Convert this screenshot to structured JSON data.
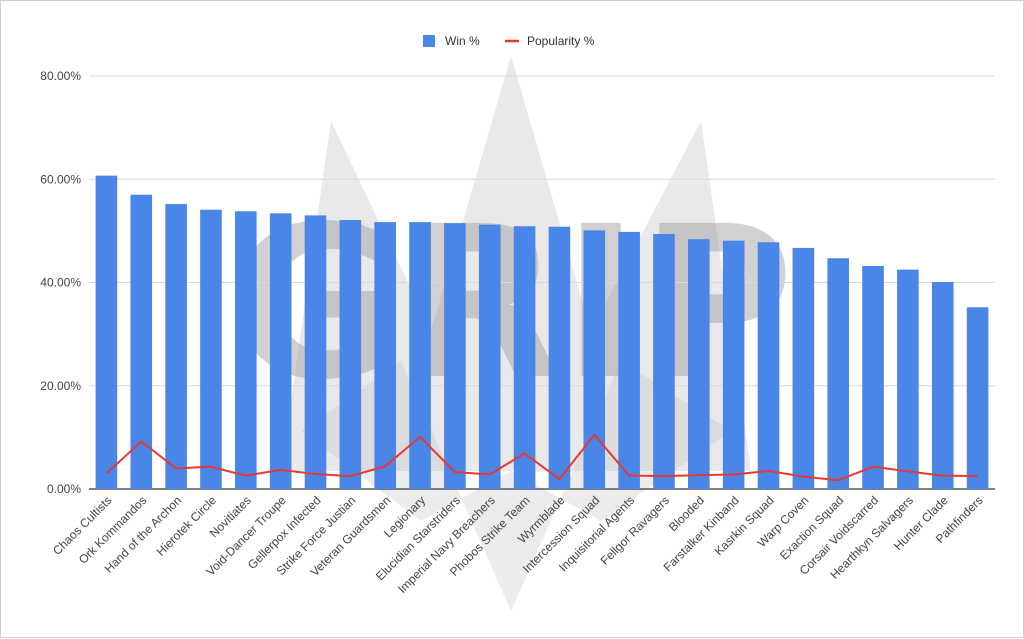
{
  "chart_data": {
    "type": "bar",
    "title": "",
    "xlabel": "",
    "ylabel": "",
    "ylim": [
      0,
      80
    ],
    "yticks": [
      "0.00%",
      "20.00%",
      "40.00%",
      "60.00%",
      "80.00%"
    ],
    "grid": true,
    "legend_position": "top-center",
    "categories": [
      "Chaos Cultists",
      "Ork Kommandos",
      "Hand of the Archon",
      "Hierotek Circle",
      "Novitiates",
      "Void-Dancer Troupe",
      "Gellerpox Infected",
      "Strike Force Justian",
      "Veteran Guardsmen",
      "Legionary",
      "Elucidian Starstriders",
      "Imperial Navy Breachers",
      "Phobos Strike Team",
      "Wyrmblade",
      "Intercession Squad",
      "Inquisitorial Agents",
      "Fellgor Ravagers",
      "Blooded",
      "Farstalker Kinband",
      "Kasrkin Squad",
      "Warp Coven",
      "Exaction Squad",
      "Corsair Voidscarred",
      "Hearthkyn Salvagers",
      "Hunter Clade",
      "Pathfinders"
    ],
    "series": [
      {
        "name": "Win %",
        "type": "bar",
        "color": "#4a86e8",
        "values": [
          60.7,
          57.0,
          55.2,
          54.1,
          53.8,
          53.4,
          53.0,
          52.1,
          51.7,
          51.7,
          51.5,
          51.2,
          50.9,
          50.8,
          50.1,
          49.8,
          49.4,
          48.4,
          48.1,
          47.8,
          46.7,
          44.7,
          43.2,
          42.5,
          40.1,
          35.2
        ]
      },
      {
        "name": "Popularity %",
        "type": "line",
        "color": "#e53935",
        "values": [
          3.0,
          9.2,
          4.0,
          4.3,
          2.6,
          3.7,
          2.9,
          2.5,
          4.4,
          10.1,
          3.3,
          2.8,
          6.9,
          1.9,
          10.5,
          2.6,
          2.5,
          2.7,
          2.8,
          3.5,
          2.4,
          1.7,
          4.3,
          3.4,
          2.6,
          2.5
        ]
      }
    ]
  },
  "watermark": {
    "text": "GRIP",
    "color": "#bfbfbf"
  }
}
